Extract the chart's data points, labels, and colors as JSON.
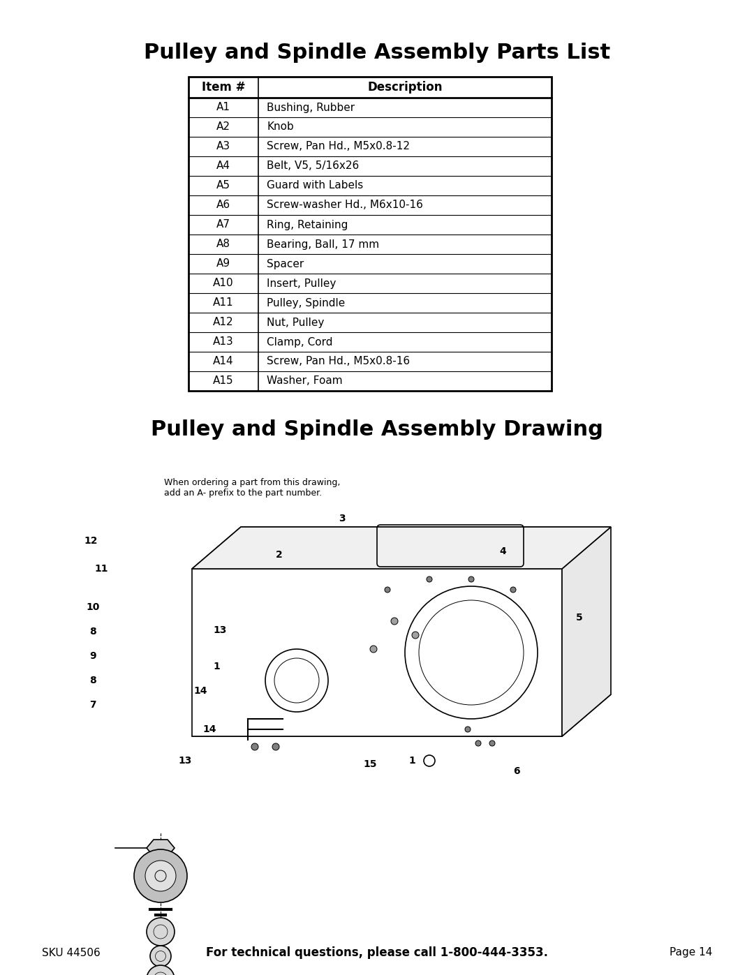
{
  "title1": "Pulley and Spindle Assembly Parts List",
  "title2": "Pulley and Spindle Assembly Drawing",
  "table_headers": [
    "Item #",
    "Description"
  ],
  "table_rows": [
    [
      "A1",
      "Bushing, Rubber"
    ],
    [
      "A2",
      "Knob"
    ],
    [
      "A3",
      "Screw, Pan Hd., M5x0.8-12"
    ],
    [
      "A4",
      "Belt, V5, 5/16x26"
    ],
    [
      "A5",
      "Guard with Labels"
    ],
    [
      "A6",
      "Screw-washer Hd., M6x10-16"
    ],
    [
      "A7",
      "Ring, Retaining"
    ],
    [
      "A8",
      "Bearing, Ball, 17 mm"
    ],
    [
      "A9",
      "Spacer"
    ],
    [
      "A10",
      "Insert, Pulley"
    ],
    [
      "A11",
      "Pulley, Spindle"
    ],
    [
      "A12",
      "Nut, Pulley"
    ],
    [
      "A13",
      "Clamp, Cord"
    ],
    [
      "A14",
      "Screw, Pan Hd., M5x0.8-16"
    ],
    [
      "A15",
      "Washer, Foam"
    ]
  ],
  "footer_left": "SKU 44506",
  "footer_center": "For technical questions, please call 1-800-444-3353.",
  "footer_right": "Page 14",
  "bg_color": "#ffffff",
  "text_color": "#000000",
  "table_border_color": "#000000",
  "header_bg": "#ffffff",
  "drawing_note": "When ordering a part from this drawing,\nadd an A- prefix to the part number."
}
